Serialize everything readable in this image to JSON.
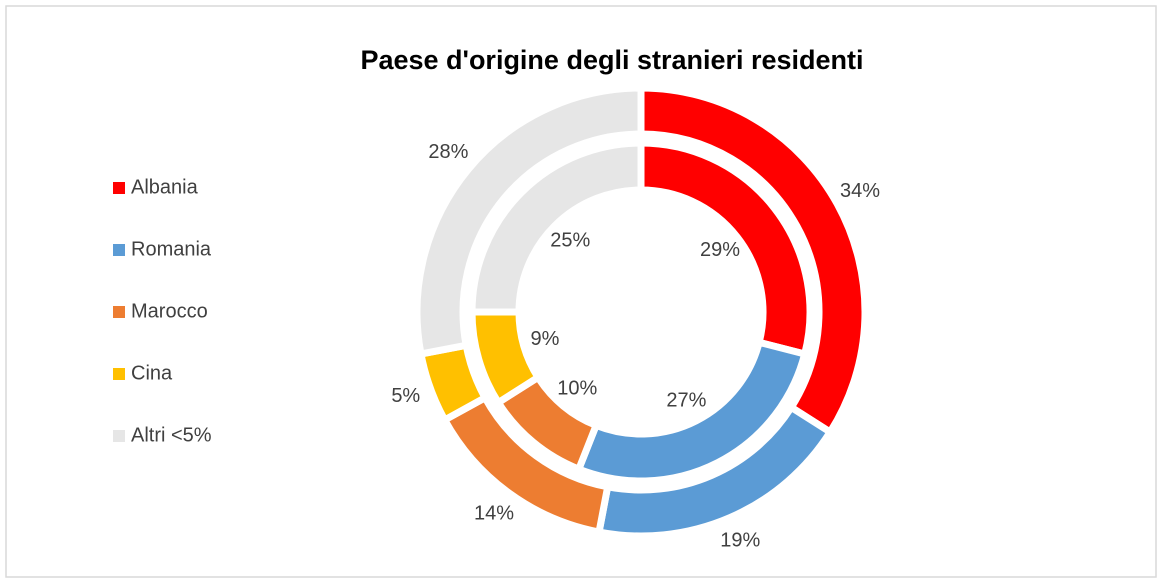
{
  "chart_data": {
    "type": "donut",
    "title": "Paese d'origine degli stranieri residenti",
    "categories": [
      "Albania",
      "Romania",
      "Marocco",
      "Cina",
      "Altri <5%"
    ],
    "colors": [
      "#ff0000",
      "#5b9bd5",
      "#ed7d31",
      "#ffc000",
      "#e6e6e6"
    ],
    "legend": "left",
    "series": [
      {
        "values": [
          34,
          19,
          14,
          5,
          28
        ],
        "value_labels": [
          "34%",
          "19%",
          "14%",
          "5%",
          "28%"
        ]
      },
      {
        "values": [
          29,
          27,
          10,
          9,
          25
        ],
        "value_labels": [
          "29%",
          "27%",
          "10%",
          "9%",
          "25%"
        ]
      }
    ]
  }
}
